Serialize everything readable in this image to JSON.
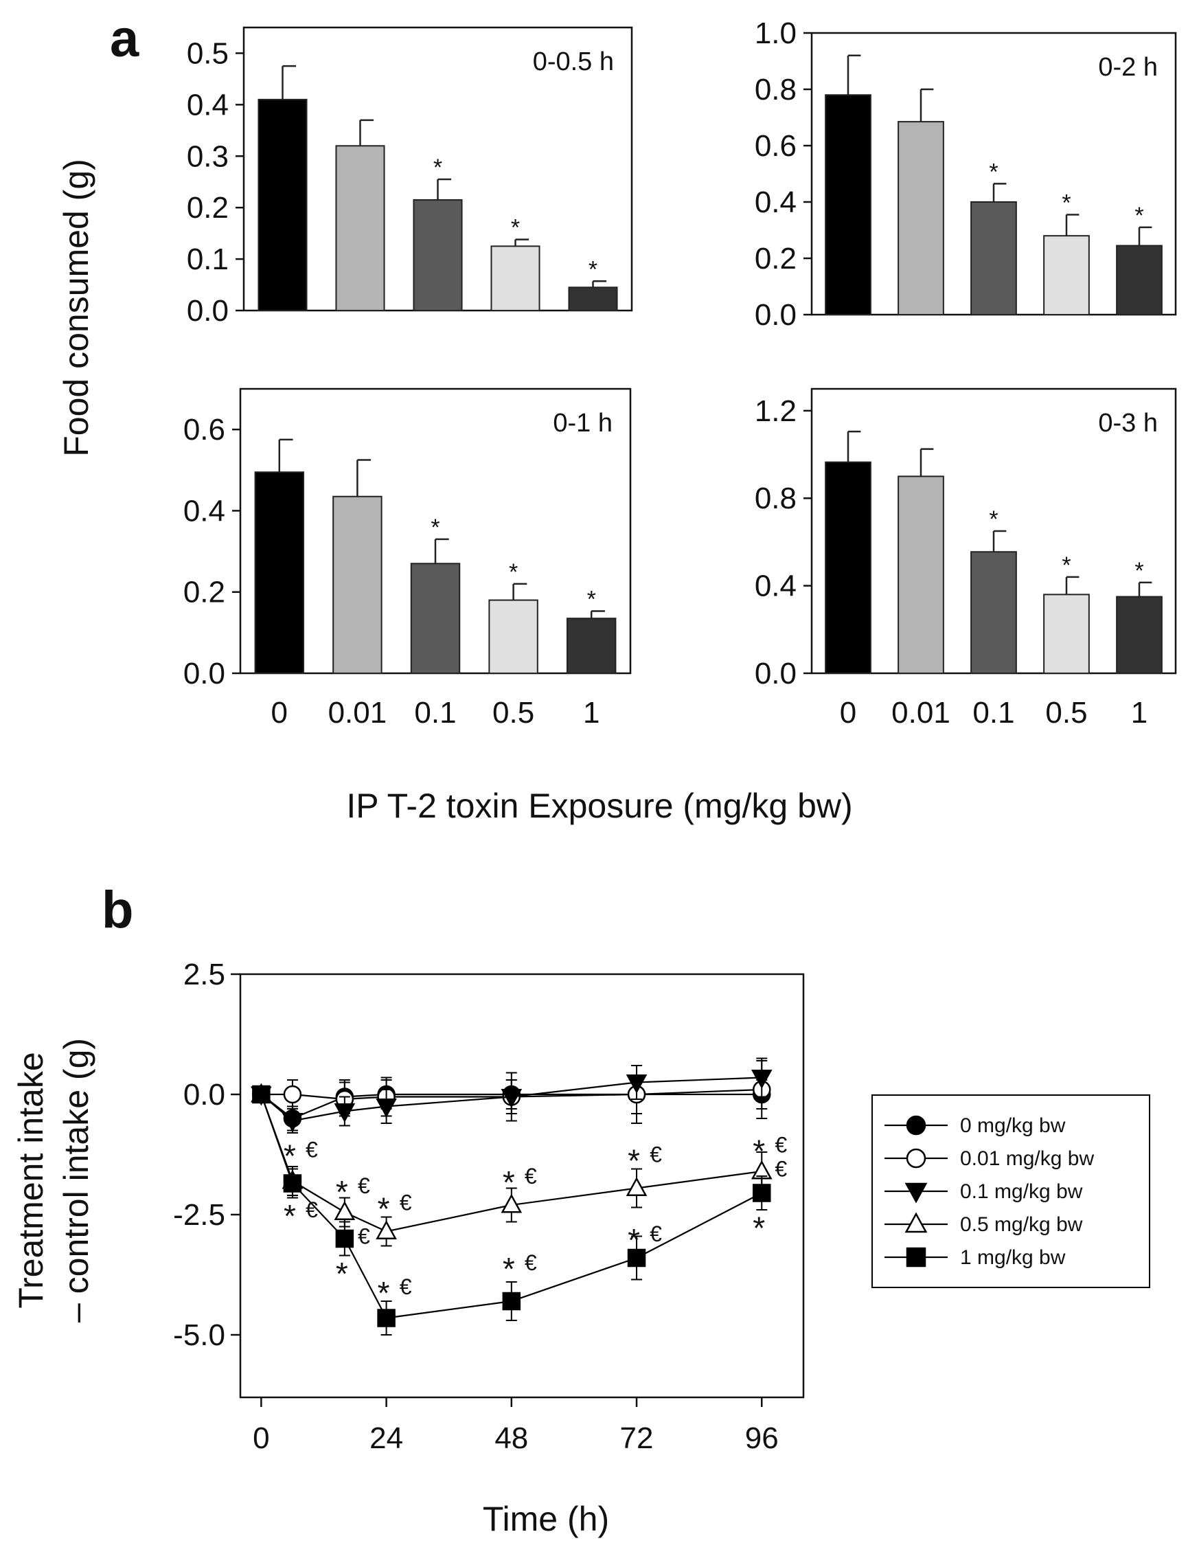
{
  "panel_a_letter": "a",
  "panel_b_letter": "b",
  "chart_data": [
    {
      "type": "bar",
      "title": "0-0.5 h",
      "categories": [
        "0",
        "0.01",
        "0.1",
        "0.5",
        "1"
      ],
      "values": [
        0.41,
        0.32,
        0.215,
        0.125,
        0.045
      ],
      "errors": [
        0.065,
        0.05,
        0.04,
        0.013,
        0.012
      ],
      "significant": [
        false,
        false,
        true,
        true,
        true
      ],
      "ylim": [
        0,
        0.55
      ],
      "yticks": [
        "0.0",
        "0.1",
        "0.2",
        "0.3",
        "0.4",
        "0.5"
      ],
      "ytick_values": [
        0,
        0.1,
        0.2,
        0.3,
        0.4,
        0.5
      ],
      "show_xticks": false
    },
    {
      "type": "bar",
      "title": "0-2 h",
      "categories": [
        "0",
        "0.01",
        "0.1",
        "0.5",
        "1"
      ],
      "values": [
        0.78,
        0.685,
        0.4,
        0.28,
        0.245
      ],
      "errors": [
        0.14,
        0.115,
        0.065,
        0.075,
        0.065
      ],
      "significant": [
        false,
        false,
        true,
        true,
        true
      ],
      "ylim": [
        0,
        1.0
      ],
      "yticks": [
        "0.0",
        "0.2",
        "0.4",
        "0.6",
        "0.8",
        "1.0"
      ],
      "ytick_values": [
        0,
        0.2,
        0.4,
        0.6,
        0.8,
        1.0
      ],
      "show_xticks": false
    },
    {
      "type": "bar",
      "title": "0-1 h",
      "categories": [
        "0",
        "0.01",
        "0.1",
        "0.5",
        "1"
      ],
      "values": [
        0.495,
        0.435,
        0.27,
        0.18,
        0.135
      ],
      "errors": [
        0.08,
        0.09,
        0.06,
        0.04,
        0.018
      ],
      "significant": [
        false,
        false,
        true,
        true,
        true
      ],
      "ylim": [
        0,
        0.7
      ],
      "yticks": [
        "0.0",
        "0.2",
        "0.4",
        "0.6"
      ],
      "ytick_values": [
        0,
        0.2,
        0.4,
        0.6
      ],
      "show_xticks": true
    },
    {
      "type": "bar",
      "title": "0-3 h",
      "categories": [
        "0",
        "0.01",
        "0.1",
        "0.5",
        "1"
      ],
      "values": [
        0.965,
        0.9,
        0.555,
        0.36,
        0.35
      ],
      "errors": [
        0.14,
        0.125,
        0.095,
        0.08,
        0.065
      ],
      "significant": [
        false,
        false,
        true,
        true,
        true
      ],
      "ylim": [
        0,
        1.3
      ],
      "yticks": [
        "0.0",
        "0.4",
        "0.8",
        "1.2"
      ],
      "ytick_values": [
        0,
        0.4,
        0.8,
        1.2
      ],
      "show_xticks": true
    },
    {
      "type": "line",
      "xlabel": "Time (h)",
      "ylabel_line1": "Treatment intake",
      "ylabel_line2": "– control intake (g)",
      "xlim": [
        -4,
        104
      ],
      "ylim": [
        -6.3,
        2.5
      ],
      "xticks": [
        "0",
        "24",
        "48",
        "72",
        "96"
      ],
      "xtick_values": [
        0,
        24,
        48,
        72,
        96
      ],
      "yticks": [
        "2.5",
        "0.0",
        "-2.5",
        "-5.0"
      ],
      "ytick_values": [
        2.5,
        0,
        -2.5,
        -5.0
      ],
      "legend_position": "right",
      "series": [
        {
          "name": "0 mg/kg bw",
          "marker": "circle",
          "filled": true,
          "x": [
            0,
            6,
            16,
            24,
            48,
            72,
            96
          ],
          "y": [
            0,
            -0.5,
            -0.05,
            0,
            0,
            0,
            0
          ],
          "err": [
            0.12,
            0.25,
            0.35,
            0.3,
            0.3,
            0.4,
            0.3
          ]
        },
        {
          "name": "0.01 mg/kg bw",
          "marker": "circle",
          "filled": false,
          "x": [
            0,
            6,
            16,
            24,
            48,
            72,
            96
          ],
          "y": [
            0,
            0,
            -0.1,
            -0.05,
            -0.05,
            0,
            0.1
          ],
          "err": [
            0.12,
            0.3,
            0.35,
            0.4,
            0.5,
            0.6,
            0.6
          ]
        },
        {
          "name": "0.1 mg/kg bw",
          "marker": "triangle-down",
          "filled": true,
          "x": [
            0,
            6,
            16,
            24,
            48,
            72,
            96
          ],
          "y": [
            0,
            -0.55,
            -0.35,
            -0.25,
            -0.05,
            0.25,
            0.35
          ],
          "err": [
            0.12,
            0.25,
            0.3,
            0.35,
            0.35,
            0.35,
            0.4
          ]
        },
        {
          "name": "0.5 mg/kg bw",
          "marker": "triangle-up",
          "filled": false,
          "x": [
            0,
            6,
            16,
            24,
            48,
            72,
            96
          ],
          "y": [
            0,
            -1.8,
            -2.45,
            -2.85,
            -2.3,
            -1.95,
            -1.6
          ],
          "err": [
            0.12,
            0.3,
            0.3,
            0.3,
            0.35,
            0.4,
            0.4
          ]
        },
        {
          "name": "1 mg/kg bw",
          "marker": "square",
          "filled": true,
          "x": [
            0,
            6,
            16,
            24,
            48,
            72,
            96
          ],
          "y": [
            0,
            -1.85,
            -3.0,
            -4.65,
            -4.3,
            -3.4,
            -2.05
          ],
          "err": [
            0.12,
            0.3,
            0.35,
            0.35,
            0.4,
            0.45,
            0.35
          ]
        }
      ],
      "annotations": [
        {
          "x": 6,
          "y": -1.25,
          "text": "*",
          "kind": "star"
        },
        {
          "x": 6,
          "y": -1.25,
          "text": "€",
          "kind": "euro"
        },
        {
          "x": 6,
          "y": -2.5,
          "text": "*",
          "kind": "star"
        },
        {
          "x": 6,
          "y": -2.5,
          "text": "€",
          "kind": "euro"
        },
        {
          "x": 16,
          "y": -2.0,
          "text": "*",
          "kind": "star"
        },
        {
          "x": 16,
          "y": -2.0,
          "text": "€",
          "kind": "euro"
        },
        {
          "x": 16,
          "y": -3.05,
          "text": "€",
          "kind": "euro"
        },
        {
          "x": 16,
          "y": -3.7,
          "text": "*",
          "kind": "star"
        },
        {
          "x": 24,
          "y": -2.35,
          "text": "*",
          "kind": "star"
        },
        {
          "x": 24,
          "y": -2.35,
          "text": "€",
          "kind": "euro"
        },
        {
          "x": 24,
          "y": -4.1,
          "text": "*",
          "kind": "star"
        },
        {
          "x": 24,
          "y": -4.1,
          "text": "€",
          "kind": "euro"
        },
        {
          "x": 48,
          "y": -1.8,
          "text": "*",
          "kind": "star"
        },
        {
          "x": 48,
          "y": -1.8,
          "text": "€",
          "kind": "euro"
        },
        {
          "x": 48,
          "y": -3.6,
          "text": "*",
          "kind": "star"
        },
        {
          "x": 48,
          "y": -3.6,
          "text": "€",
          "kind": "euro"
        },
        {
          "x": 72,
          "y": -1.35,
          "text": "*",
          "kind": "star"
        },
        {
          "x": 72,
          "y": -1.35,
          "text": "€",
          "kind": "euro"
        },
        {
          "x": 72,
          "y": -3.0,
          "text": "*",
          "kind": "star"
        },
        {
          "x": 72,
          "y": -3.0,
          "text": "€",
          "kind": "euro"
        },
        {
          "x": 96,
          "y": -1.15,
          "text": "*",
          "kind": "star"
        },
        {
          "x": 96,
          "y": -1.15,
          "text": "€",
          "kind": "euro"
        },
        {
          "x": 96,
          "y": -1.65,
          "text": "€",
          "kind": "euro"
        },
        {
          "x": 96,
          "y": -2.75,
          "text": "*",
          "kind": "star"
        }
      ]
    }
  ],
  "panel_a_ylabel": "Food consumed (g)",
  "panel_a_xlabel": "IP T-2 toxin Exposure (mg/kg bw)",
  "significance_marker": "*",
  "colors": {
    "bars": [
      "#000000",
      "#b4b4b4",
      "#5a5a5a",
      "#e0e0e0",
      "#333333"
    ],
    "axis": "#111111"
  }
}
